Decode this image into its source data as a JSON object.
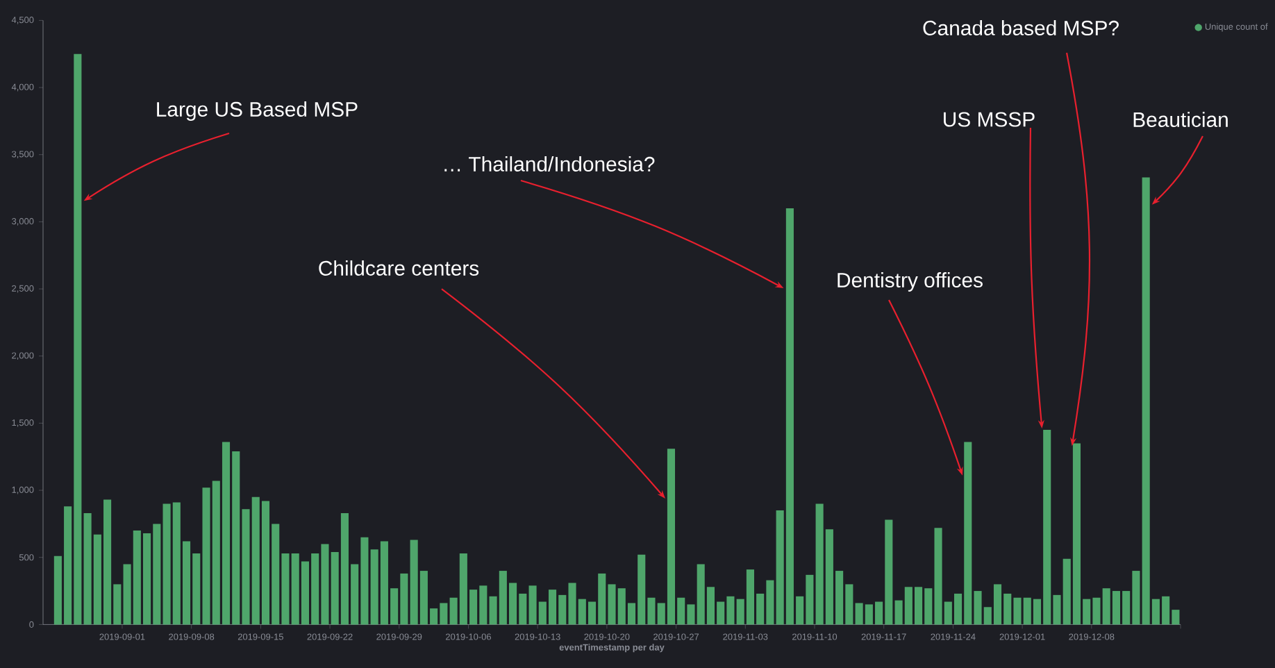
{
  "chart_data": {
    "type": "bar",
    "xlabel": "eventTimestamp per day",
    "x": [
      "2019-08-25",
      "2019-08-26",
      "2019-08-27",
      "2019-08-28",
      "2019-08-29",
      "2019-08-30",
      "2019-08-31",
      "2019-09-01",
      "2019-09-02",
      "2019-09-03",
      "2019-09-04",
      "2019-09-05",
      "2019-09-06",
      "2019-09-07",
      "2019-09-08",
      "2019-09-09",
      "2019-09-10",
      "2019-09-11",
      "2019-09-12",
      "2019-09-13",
      "2019-09-14",
      "2019-09-15",
      "2019-09-16",
      "2019-09-17",
      "2019-09-18",
      "2019-09-19",
      "2019-09-20",
      "2019-09-21",
      "2019-09-22",
      "2019-09-23",
      "2019-09-24",
      "2019-09-25",
      "2019-09-26",
      "2019-09-27",
      "2019-09-28",
      "2019-09-29",
      "2019-09-30",
      "2019-10-01",
      "2019-10-02",
      "2019-10-03",
      "2019-10-04",
      "2019-10-05",
      "2019-10-06",
      "2019-10-07",
      "2019-10-08",
      "2019-10-09",
      "2019-10-10",
      "2019-10-11",
      "2019-10-12",
      "2019-10-13",
      "2019-10-14",
      "2019-10-15",
      "2019-10-16",
      "2019-10-17",
      "2019-10-18",
      "2019-10-19",
      "2019-10-20",
      "2019-10-21",
      "2019-10-22",
      "2019-10-23",
      "2019-10-24",
      "2019-10-25",
      "2019-10-26",
      "2019-10-27",
      "2019-10-28",
      "2019-10-29",
      "2019-10-30",
      "2019-10-31",
      "2019-11-01",
      "2019-11-02",
      "2019-11-03",
      "2019-11-04",
      "2019-11-05",
      "2019-11-06",
      "2019-11-07",
      "2019-11-08",
      "2019-11-09",
      "2019-11-10",
      "2019-11-11",
      "2019-11-12",
      "2019-11-13",
      "2019-11-14",
      "2019-11-15",
      "2019-11-16",
      "2019-11-17",
      "2019-11-18",
      "2019-11-19",
      "2019-11-20",
      "2019-11-21",
      "2019-11-22",
      "2019-11-23",
      "2019-11-24",
      "2019-11-25",
      "2019-11-26",
      "2019-11-27",
      "2019-11-28",
      "2019-11-29",
      "2019-11-30",
      "2019-12-01",
      "2019-12-02",
      "2019-12-03",
      "2019-12-04",
      "2019-12-05",
      "2019-12-06",
      "2019-12-07",
      "2019-12-08",
      "2019-12-09",
      "2019-12-10",
      "2019-12-11",
      "2019-12-12",
      "2019-12-13",
      "2019-12-14",
      "2019-12-15",
      "2019-12-16"
    ],
    "series": [
      {
        "name": "Unique count of",
        "color": "#4fa66b",
        "values": [
          510,
          880,
          4250,
          830,
          670,
          930,
          300,
          450,
          700,
          680,
          750,
          900,
          910,
          620,
          530,
          1020,
          1070,
          1360,
          1290,
          860,
          950,
          920,
          750,
          530,
          530,
          470,
          530,
          600,
          540,
          830,
          450,
          650,
          560,
          620,
          270,
          380,
          630,
          400,
          120,
          160,
          200,
          530,
          260,
          290,
          210,
          400,
          310,
          230,
          290,
          170,
          260,
          220,
          310,
          190,
          170,
          380,
          300,
          270,
          160,
          520,
          200,
          160,
          1310,
          200,
          150,
          450,
          280,
          170,
          210,
          190,
          410,
          230,
          330,
          850,
          3100,
          210,
          370,
          900,
          710,
          400,
          300,
          160,
          150,
          170,
          780,
          180,
          280,
          280,
          270,
          720,
          170,
          230,
          1360,
          250,
          130,
          300,
          230,
          200,
          200,
          190,
          1450,
          220,
          490,
          1350,
          190,
          200,
          270,
          250,
          250,
          400,
          3330,
          190,
          210,
          110
        ]
      }
    ],
    "xlim": [
      "2019-08-24",
      "2019-12-17"
    ],
    "xticks": [
      {
        "value": "2019-09-01",
        "label": "2019-09-01"
      },
      {
        "value": "2019-09-08",
        "label": "2019-09-08"
      },
      {
        "value": "2019-09-15",
        "label": "2019-09-15"
      },
      {
        "value": "2019-09-22",
        "label": "2019-09-22"
      },
      {
        "value": "2019-09-29",
        "label": "2019-09-29"
      },
      {
        "value": "2019-10-06",
        "label": "2019-10-06"
      },
      {
        "value": "2019-10-13",
        "label": "2019-10-13"
      },
      {
        "value": "2019-10-20",
        "label": "2019-10-20"
      },
      {
        "value": "2019-10-27",
        "label": "2019-10-27"
      },
      {
        "value": "2019-11-03",
        "label": "2019-11-03"
      },
      {
        "value": "2019-11-10",
        "label": "2019-11-10"
      },
      {
        "value": "2019-11-17",
        "label": "2019-11-17"
      },
      {
        "value": "2019-11-24",
        "label": "2019-11-24"
      },
      {
        "value": "2019-12-01",
        "label": "2019-12-01"
      },
      {
        "value": "2019-12-08",
        "label": "2019-12-08"
      },
      {
        "value": "2019-12-17",
        "label": null
      }
    ],
    "ylim": [
      0,
      4500
    ],
    "yticks": [
      0,
      {
        "value": 500,
        "label": "500"
      },
      {
        "value": 1000,
        "label": "1,000"
      },
      {
        "value": 1500,
        "label": "1,500"
      },
      {
        "value": 2000,
        "label": "2,000"
      },
      {
        "value": 2500,
        "label": "2,500"
      },
      {
        "value": 3000,
        "label": "3,000"
      },
      {
        "value": 3500,
        "label": "3,500"
      },
      {
        "value": 4000,
        "label": "4,000"
      },
      {
        "value": 4500,
        "label": "4,500"
      }
    ],
    "legend": "top right",
    "annotations": [
      {
        "text": "Large US Based MSP",
        "x": "2019-08-28",
        "y": 3150
      },
      {
        "text": "… Thailand/Indonesia?",
        "x": "2019-11-07",
        "y": 2500
      },
      {
        "text": "Childcare centers",
        "x": "2019-10-26",
        "y": 930
      },
      {
        "text": "Dentistry offices",
        "x": "2019-11-25",
        "y": 1100
      },
      {
        "text": "US MSSP",
        "x": "2019-12-03",
        "y": 1450
      },
      {
        "text": "Canada based MSP?",
        "x": "2019-12-06",
        "y": 1320
      },
      {
        "text": "Beautician",
        "x": "2019-12-14",
        "y": 3120
      }
    ]
  }
}
